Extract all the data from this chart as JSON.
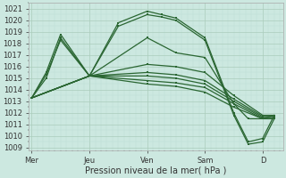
{
  "xlabel": "Pression niveau de la mer( hPa )",
  "background_color": "#cce8e0",
  "grid_color_major": "#aaccbb",
  "grid_color_minor": "#bbddd4",
  "line_color": "#2a6632",
  "ylim": [
    1008.8,
    1021.5
  ],
  "yticks": [
    1009,
    1010,
    1011,
    1012,
    1013,
    1014,
    1015,
    1016,
    1017,
    1018,
    1019,
    1020,
    1021
  ],
  "day_labels": [
    "Mer",
    "Jeu",
    "Ven",
    "Sam",
    "D"
  ],
  "day_positions": [
    0,
    1,
    2,
    3,
    4
  ],
  "xlim": [
    -0.05,
    4.35
  ],
  "series": [
    {
      "x": [
        0.0,
        0.25,
        0.5,
        1.0,
        1.5,
        2.0,
        2.25,
        2.5,
        3.0,
        3.5,
        3.75,
        4.0,
        4.2
      ],
      "y": [
        1013.3,
        1015.5,
        1018.8,
        1015.2,
        1019.5,
        1020.5,
        1020.3,
        1020.0,
        1018.3,
        1011.8,
        1009.3,
        1009.5,
        1011.5
      ]
    },
    {
      "x": [
        0.0,
        0.25,
        0.5,
        1.0,
        1.5,
        2.0,
        2.25,
        2.5,
        3.0,
        3.5,
        3.75,
        4.0,
        4.2
      ],
      "y": [
        1013.3,
        1015.3,
        1018.3,
        1015.2,
        1019.8,
        1020.8,
        1020.5,
        1020.2,
        1018.5,
        1012.0,
        1009.5,
        1009.8,
        1011.8
      ]
    },
    {
      "x": [
        0.0,
        0.25,
        0.5,
        1.0,
        2.0,
        2.5,
        3.0,
        3.5,
        3.75,
        4.0,
        4.2
      ],
      "y": [
        1013.3,
        1015.0,
        1018.5,
        1015.2,
        1018.5,
        1017.2,
        1016.8,
        1012.8,
        1011.5,
        1011.5,
        1011.8
      ]
    },
    {
      "x": [
        0.0,
        1.0,
        2.0,
        2.5,
        3.0,
        3.5,
        4.0,
        4.2
      ],
      "y": [
        1013.3,
        1015.2,
        1016.2,
        1016.0,
        1015.5,
        1013.5,
        1011.8,
        1011.8
      ]
    },
    {
      "x": [
        0.0,
        1.0,
        2.0,
        2.5,
        3.0,
        3.5,
        4.0,
        4.2
      ],
      "y": [
        1013.3,
        1015.2,
        1015.5,
        1015.3,
        1014.8,
        1013.2,
        1011.7,
        1011.7
      ]
    },
    {
      "x": [
        0.0,
        1.0,
        2.0,
        2.5,
        3.0,
        3.5,
        4.0,
        4.2
      ],
      "y": [
        1013.3,
        1015.2,
        1015.2,
        1015.0,
        1014.5,
        1013.0,
        1011.6,
        1011.6
      ]
    },
    {
      "x": [
        0.0,
        1.0,
        2.0,
        2.5,
        3.0,
        3.5,
        4.0,
        4.2
      ],
      "y": [
        1013.3,
        1015.2,
        1014.8,
        1014.6,
        1014.2,
        1012.8,
        1011.5,
        1011.5
      ]
    },
    {
      "x": [
        0.0,
        1.0,
        2.0,
        2.5,
        3.0,
        3.5,
        4.0,
        4.2
      ],
      "y": [
        1013.3,
        1015.2,
        1014.5,
        1014.3,
        1013.8,
        1012.5,
        1011.5,
        1011.5
      ]
    }
  ],
  "xlabel_fontsize": 7,
  "tick_fontsize": 6,
  "linewidth": 0.9,
  "marker_size": 2.0
}
